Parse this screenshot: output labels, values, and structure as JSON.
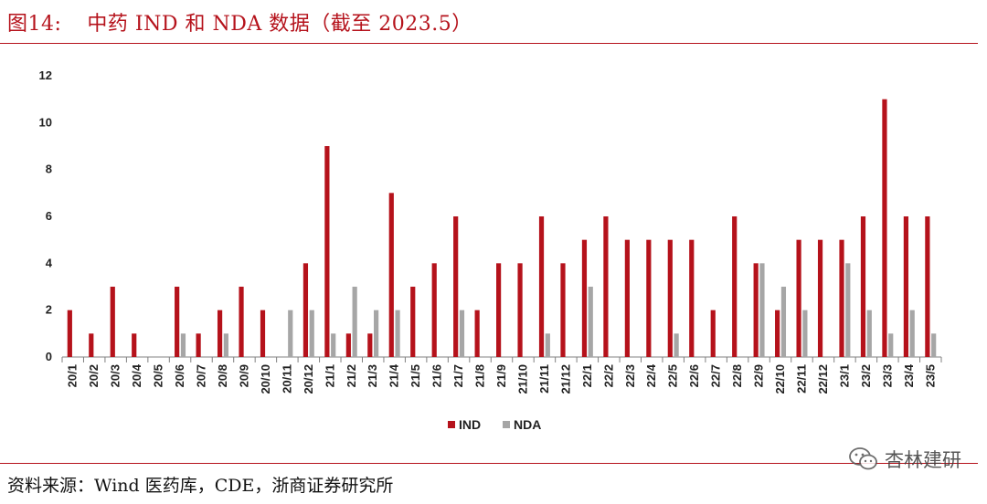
{
  "figure": {
    "number": "图14:",
    "title": "中药 IND 和 NDA 数据（截至 2023.5）"
  },
  "source": "资料来源：Wind 医药库，CDE，浙商证券研究所",
  "watermark": "杏林建研",
  "colors": {
    "accent": "#b5121b",
    "ind": "#b5121b",
    "nda": "#a6a6a6"
  },
  "chart_data": {
    "type": "bar",
    "categories": [
      "20/1",
      "20/2",
      "20/3",
      "20/4",
      "20/5",
      "20/6",
      "20/7",
      "20/8",
      "20/9",
      "20/10",
      "20/11",
      "20/12",
      "21/1",
      "21/2",
      "21/3",
      "21/4",
      "21/5",
      "21/6",
      "21/7",
      "21/8",
      "21/9",
      "21/10",
      "21/11",
      "21/12",
      "22/1",
      "22/2",
      "22/3",
      "22/4",
      "22/5",
      "22/6",
      "22/7",
      "22/8",
      "22/9",
      "22/10",
      "22/11",
      "22/12",
      "23/1",
      "23/2",
      "23/3",
      "23/4",
      "23/5"
    ],
    "series": [
      {
        "name": "IND",
        "values": [
          2,
          1,
          3,
          1,
          0,
          3,
          1,
          2,
          3,
          2,
          0,
          4,
          9,
          1,
          1,
          7,
          3,
          4,
          6,
          2,
          4,
          4,
          6,
          4,
          5,
          6,
          5,
          5,
          5,
          5,
          2,
          6,
          4,
          2,
          5,
          5,
          5,
          6,
          11,
          6,
          6
        ]
      },
      {
        "name": "NDA",
        "values": [
          0,
          0,
          0,
          0,
          0,
          1,
          0,
          1,
          0,
          0,
          2,
          2,
          1,
          3,
          2,
          2,
          0,
          0,
          2,
          0,
          0,
          0,
          1,
          0,
          3,
          0,
          0,
          0,
          1,
          0,
          0,
          0,
          4,
          3,
          2,
          0,
          4,
          2,
          1,
          2,
          1
        ]
      }
    ],
    "yticks": [
      0,
      2,
      4,
      6,
      8,
      10,
      12
    ],
    "ylim": [
      0,
      12
    ],
    "legend_position": "bottom-center",
    "grid": false
  }
}
